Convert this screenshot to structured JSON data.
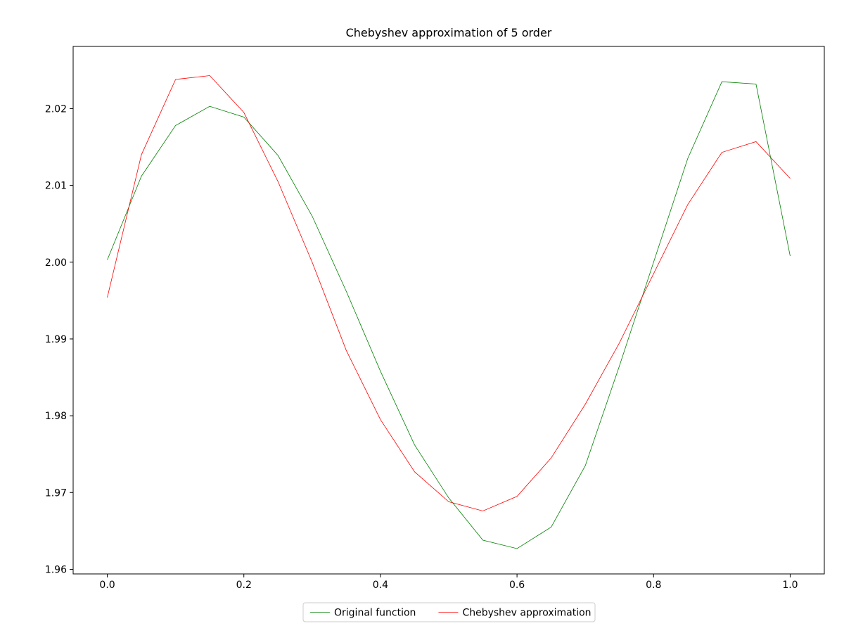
{
  "chart_data": {
    "type": "line",
    "title": "Chebyshev approximation of 5 order",
    "x": [
      0,
      0.05,
      0.1,
      0.15,
      0.2,
      0.25,
      0.3,
      0.35,
      0.4,
      0.45,
      0.5,
      0.55,
      0.6,
      0.65,
      0.7,
      0.75,
      0.8,
      0.85,
      0.9,
      0.95,
      1.0
    ],
    "series": [
      {
        "name": "Original function",
        "color": "#008000",
        "values": [
          2.0003,
          2.0112,
          2.0178,
          2.0203,
          2.0189,
          2.0139,
          2.006,
          1.9962,
          1.9858,
          1.9762,
          1.9693,
          1.9638,
          1.9627,
          1.9655,
          1.9735,
          1.9865,
          2.0,
          2.0135,
          2.0235,
          2.0232,
          2.0008
        ]
      },
      {
        "name": "Chebyshev approximation",
        "color": "#ff0000",
        "values": [
          1.9954,
          2.014,
          2.0238,
          2.0243,
          2.0195,
          2.0105,
          2.0,
          1.9885,
          1.9795,
          1.9727,
          1.9688,
          1.9676,
          1.9695,
          1.9745,
          1.9815,
          1.9895,
          1.9985,
          2.0075,
          2.0143,
          2.0157,
          2.0109
        ]
      }
    ],
    "xlim": [
      -0.05,
      1.05
    ],
    "ylim": [
      1.9594,
      2.0281
    ],
    "xticks": [
      {
        "value": 0,
        "label": "0.0"
      },
      0.2,
      0.4,
      0.6,
      0.8,
      {
        "value": 1,
        "label": "1.0"
      }
    ],
    "yticks": [
      {
        "value": 1.96,
        "label": "1.96"
      },
      1.97,
      1.98,
      1.99,
      {
        "value": 2,
        "label": "2.00"
      },
      2.01,
      {
        "value": 2.02,
        "label": "2.02"
      }
    ],
    "legend": "bottom"
  }
}
